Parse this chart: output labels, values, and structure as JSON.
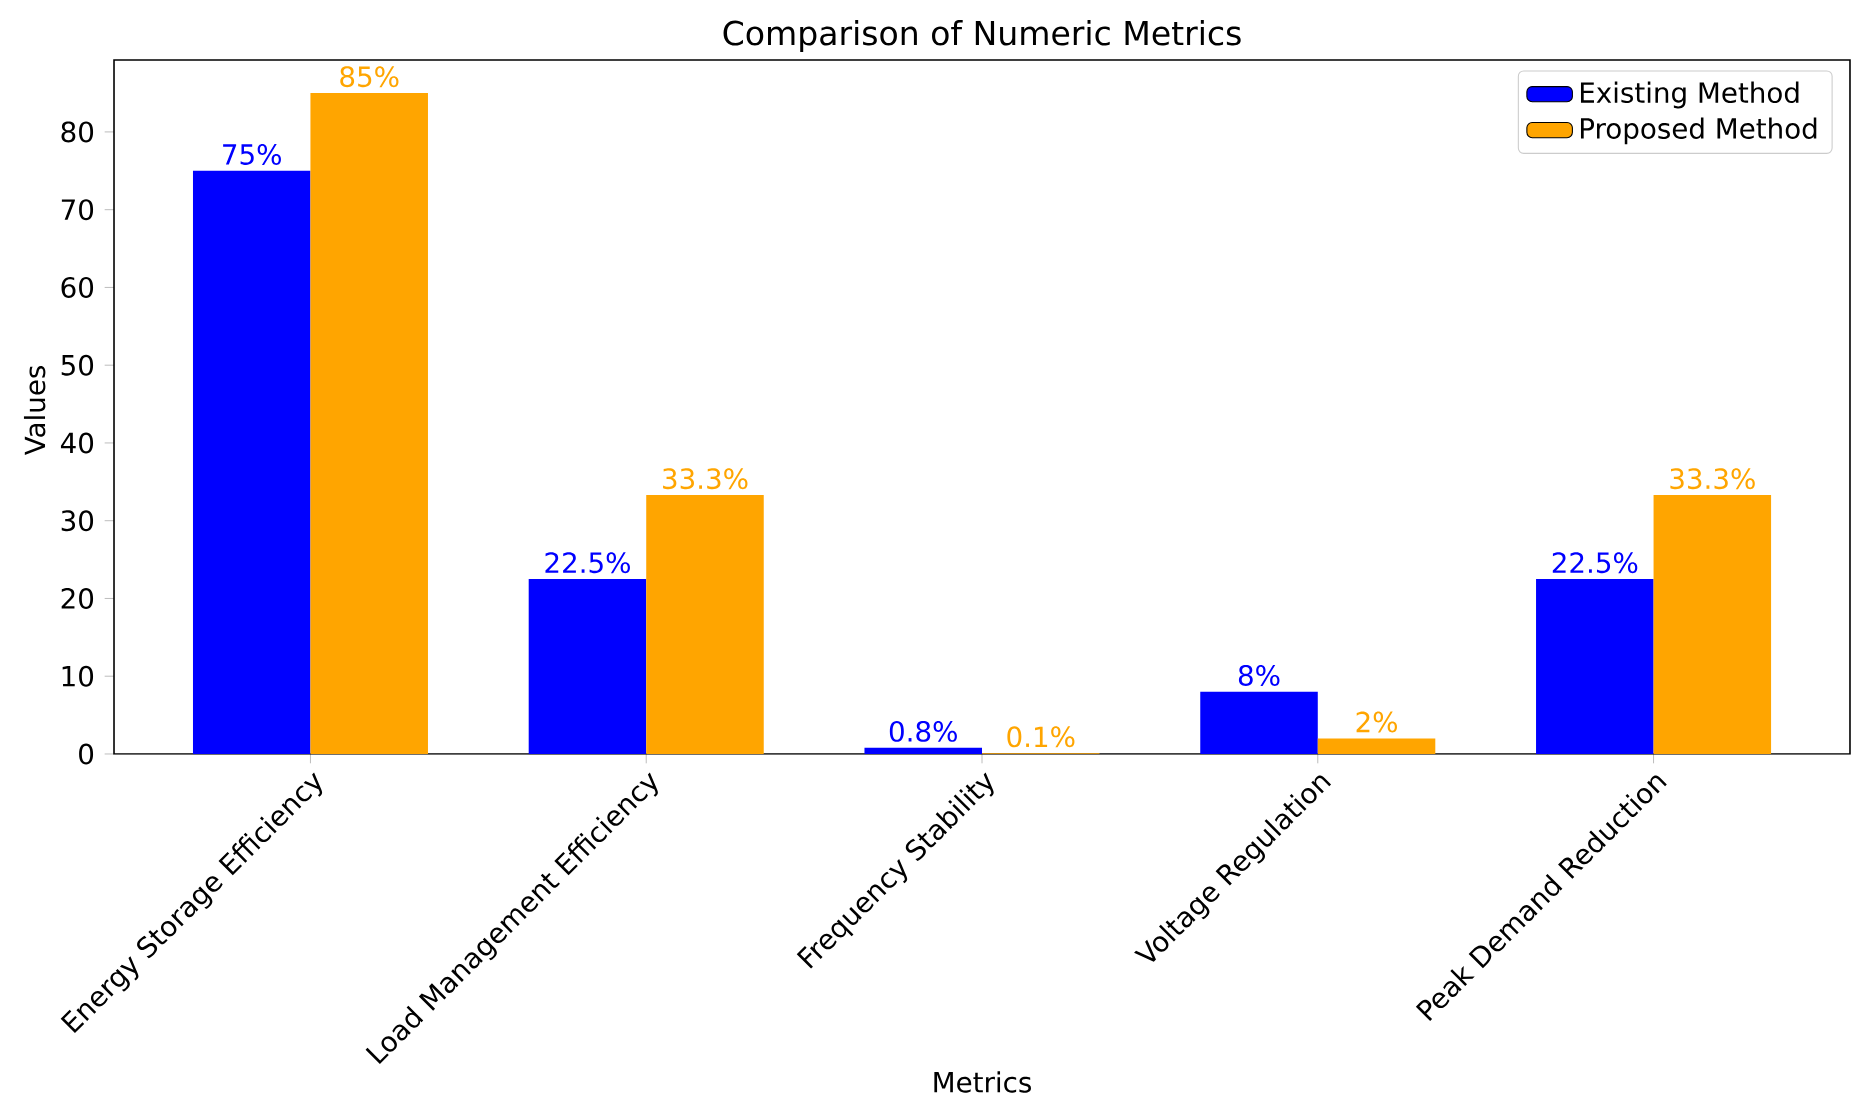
{
  "chart_data": {
    "type": "bar",
    "title": "Comparison of Numeric Metrics",
    "xlabel": "Metrics",
    "ylabel": "Values",
    "categories": [
      "Energy Storage Efficiency",
      "Load Management Efficiency",
      "Frequency Stability",
      "Voltage Regulation",
      "Peak Demand Reduction"
    ],
    "series": [
      {
        "name": "Existing Method",
        "color": "#0000ff",
        "values": [
          75,
          22.5,
          0.8,
          8,
          22.5
        ],
        "value_labels": [
          "75%",
          "22.5%",
          "0.8%",
          "8%",
          "22.5%"
        ]
      },
      {
        "name": "Proposed Method",
        "color": "#ffa500",
        "values": [
          85,
          33.3,
          0.1,
          2,
          33.3
        ],
        "value_labels": [
          "85%",
          "33.3%",
          "0.1%",
          "2%",
          "33.3%"
        ]
      }
    ],
    "ylim": [
      0,
      89.25
    ],
    "yticks": [
      0,
      10,
      20,
      30,
      40,
      50,
      60,
      70,
      80
    ],
    "grid": false,
    "legend": "top right"
  }
}
